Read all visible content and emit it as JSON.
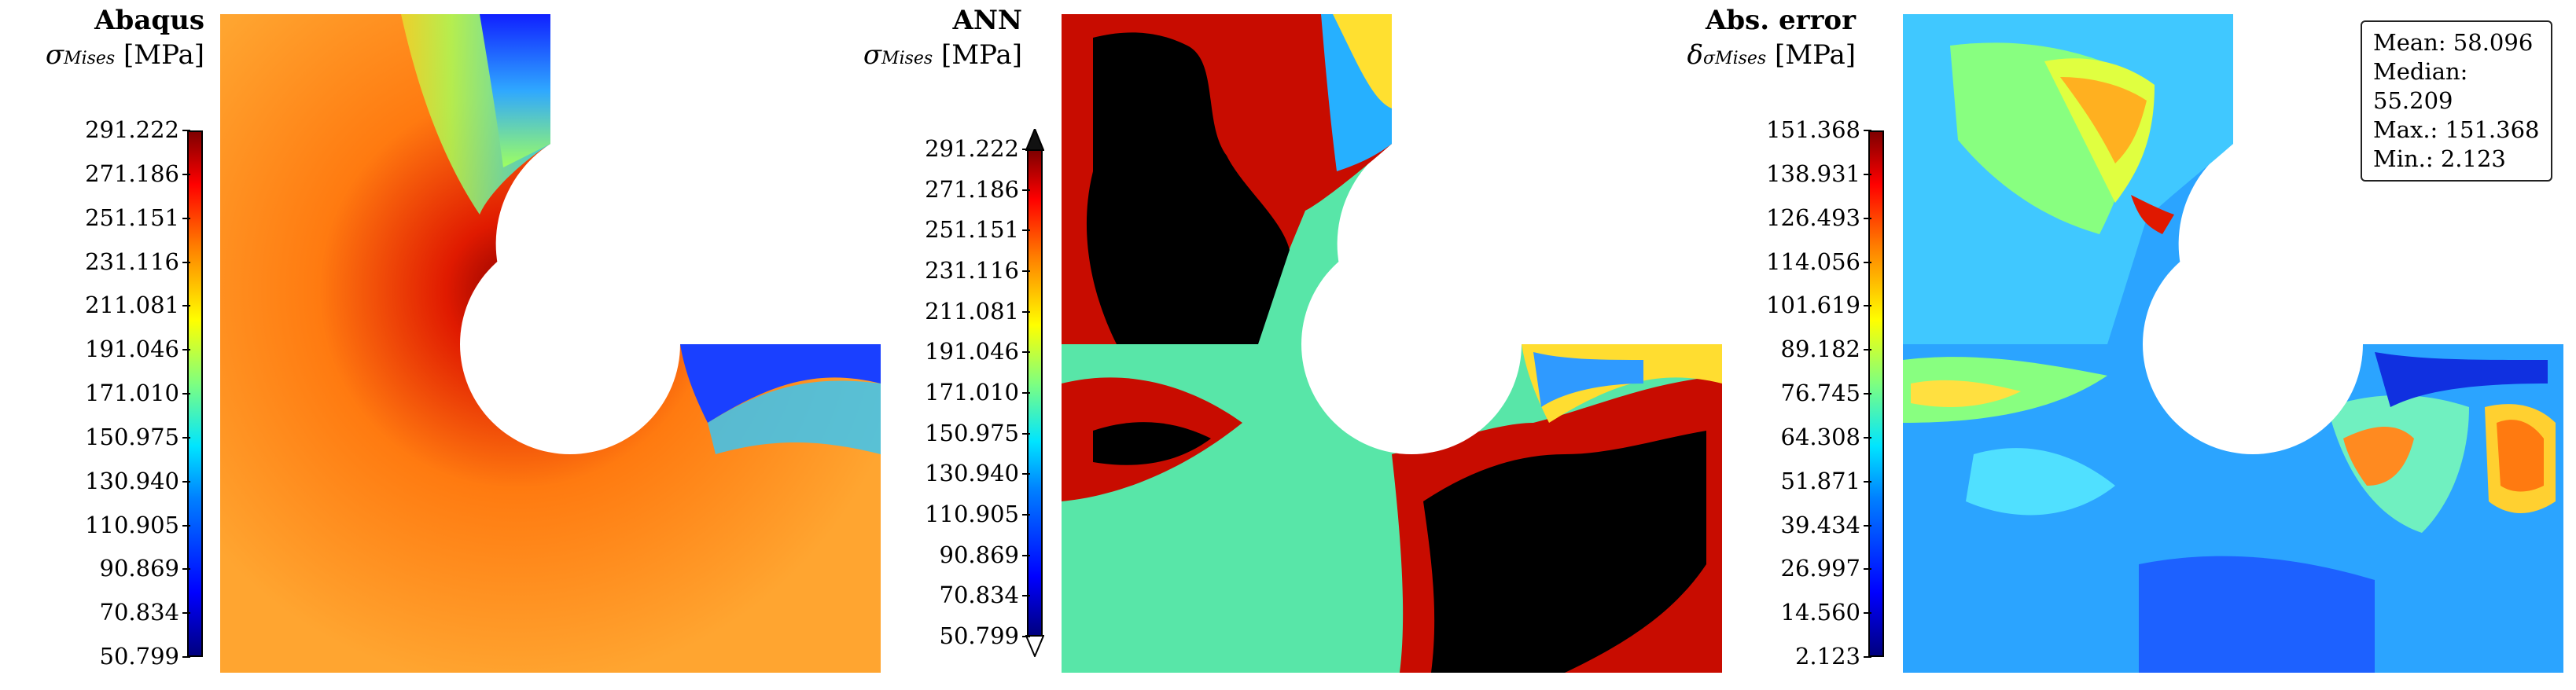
{
  "panels": [
    {
      "title": "Abaqus",
      "quantity_symbol": "σ",
      "quantity_subscript": "Mises",
      "unit": "[MPa]",
      "ticks": [
        "291.222",
        "271.186",
        "251.151",
        "231.116",
        "211.081",
        "191.046",
        "171.010",
        "150.975",
        "130.940",
        "110.905",
        "90.869",
        "70.834",
        "50.799"
      ]
    },
    {
      "title": "ANN",
      "quantity_symbol": "σ",
      "quantity_subscript": "Mises",
      "unit": "[MPa]",
      "ticks": [
        "291.222",
        "271.186",
        "251.151",
        "231.116",
        "211.081",
        "191.046",
        "171.010",
        "150.975",
        "130.940",
        "110.905",
        "90.869",
        "70.834",
        "50.799"
      ]
    },
    {
      "title": "Abs. error",
      "quantity_symbol": "δ",
      "quantity_subscript": "σMises",
      "unit": "[MPa]",
      "ticks": [
        "151.368",
        "138.931",
        "126.493",
        "114.056",
        "101.619",
        "89.182",
        "76.745",
        "64.308",
        "51.871",
        "39.434",
        "26.997",
        "14.560",
        "2.123"
      ]
    }
  ],
  "stats": {
    "mean": "Mean: 58.096",
    "median": "Median: 55.209",
    "max": "Max.: 151.368",
    "min": "Min.: 2.123"
  }
}
